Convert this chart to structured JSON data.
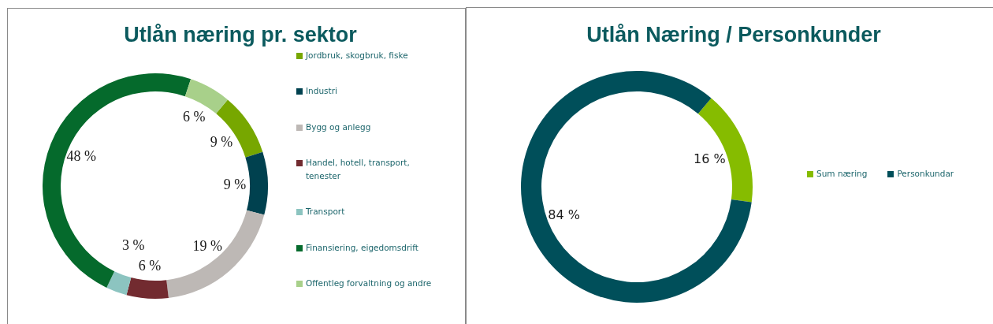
{
  "chart_data": [
    {
      "type": "donut",
      "title": "Utlån næring pr. sektor",
      "categories": [
        "Jordbruk, skogbruk, fiske",
        "Industri",
        "Bygg og anlegg",
        "Handel, hotell, transport, tenester",
        "Transport",
        "Finansiering, eigedomsdrift",
        "Offentleg forvaltning og andre"
      ],
      "values": [
        9,
        9,
        19,
        6,
        3,
        48,
        6
      ],
      "colors": [
        "#77a700",
        "#00414f",
        "#bdb8b5",
        "#722b30",
        "#8cc4c0",
        "#056a2c",
        "#a8d08a"
      ],
      "value_labels": [
        "9 %",
        "9 %",
        "19 %",
        "6 %",
        "3 %",
        "48 %",
        "6 %"
      ],
      "legend": "right"
    },
    {
      "type": "donut",
      "title": "Utlån Næring / Personkunder",
      "categories": [
        "Sum næring",
        "Personkundar"
      ],
      "values": [
        16,
        84
      ],
      "colors": [
        "#86bc00",
        "#004f5a"
      ],
      "value_labels": [
        "16 %",
        "84 %"
      ],
      "legend": "right"
    }
  ]
}
